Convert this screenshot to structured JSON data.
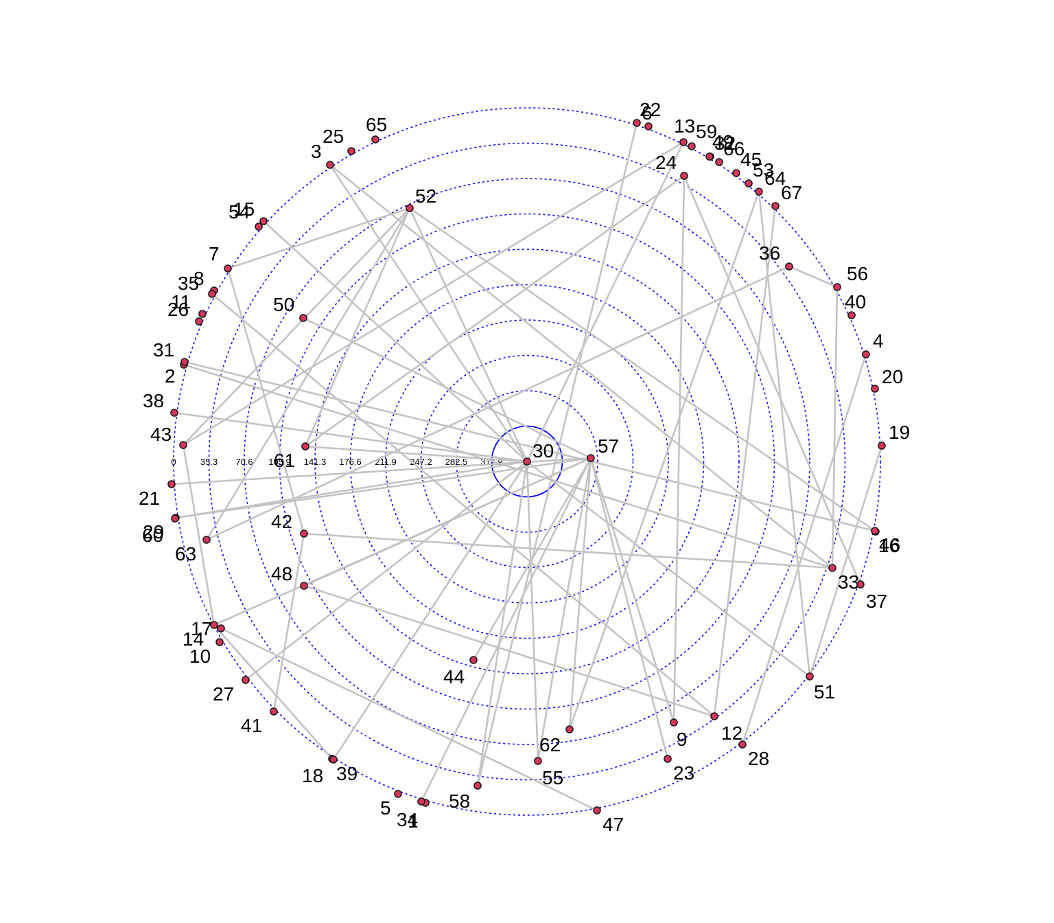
{
  "ring_labels": [
    "0",
    "35.3",
    "70.6",
    "105.9",
    "141.3",
    "176.6",
    "211.9",
    "247.2",
    "282.5",
    "317.9"
  ],
  "center_node": "30",
  "nodes": [
    {
      "id": "1",
      "ring": 0
    },
    {
      "id": "2",
      "ring": 0
    },
    {
      "id": "3",
      "ring": 1
    },
    {
      "id": "4",
      "ring": 0
    },
    {
      "id": "5",
      "ring": 0
    },
    {
      "id": "6",
      "ring": 0
    },
    {
      "id": "7",
      "ring": 0
    },
    {
      "id": "8",
      "ring": 0
    },
    {
      "id": "9",
      "ring": 3
    },
    {
      "id": "10",
      "ring": 0
    },
    {
      "id": "11",
      "ring": 0
    },
    {
      "id": "12",
      "ring": 1
    },
    {
      "id": "13",
      "ring": 0
    },
    {
      "id": "14",
      "ring": 0
    },
    {
      "id": "15",
      "ring": 0
    },
    {
      "id": "16",
      "ring": 0
    },
    {
      "id": "17",
      "ring": 0
    },
    {
      "id": "18",
      "ring": 1
    },
    {
      "id": "19",
      "ring": 0
    },
    {
      "id": "20",
      "ring": 0
    },
    {
      "id": "21",
      "ring": 0
    },
    {
      "id": "22",
      "ring": 0
    },
    {
      "id": "23",
      "ring": 2
    },
    {
      "id": "24",
      "ring": 1
    },
    {
      "id": "25",
      "ring": 0
    },
    {
      "id": "26",
      "ring": 0
    },
    {
      "id": "27",
      "ring": 0
    },
    {
      "id": "28",
      "ring": 0
    },
    {
      "id": "29",
      "ring": 0
    },
    {
      "id": "30",
      "ring": 9
    },
    {
      "id": "31",
      "ring": 0
    },
    {
      "id": "32",
      "ring": 0
    },
    {
      "id": "33",
      "ring": 1
    },
    {
      "id": "34",
      "ring": 0
    },
    {
      "id": "35",
      "ring": 0
    },
    {
      "id": "36",
      "ring": 1
    },
    {
      "id": "37",
      "ring": 0
    },
    {
      "id": "38",
      "ring": 0
    },
    {
      "id": "39",
      "ring": 1
    },
    {
      "id": "40",
      "ring": 0
    },
    {
      "id": "41",
      "ring": 0
    },
    {
      "id": "42",
      "ring": 3
    },
    {
      "id": "43",
      "ring": 1
    },
    {
      "id": "44",
      "ring": 4
    },
    {
      "id": "45",
      "ring": 0
    },
    {
      "id": "46",
      "ring": 0
    },
    {
      "id": "47",
      "ring": 0
    },
    {
      "id": "48",
      "ring": 3
    },
    {
      "id": "49",
      "ring": 0
    },
    {
      "id": "50",
      "ring": 3
    },
    {
      "id": "51",
      "ring": 0
    },
    {
      "id": "52",
      "ring": 2
    },
    {
      "id": "53",
      "ring": 0
    },
    {
      "id": "54",
      "ring": 0
    },
    {
      "id": "55",
      "ring": 2
    },
    {
      "id": "56",
      "ring": 0
    },
    {
      "id": "57",
      "ring": 9
    },
    {
      "id": "58",
      "ring": 1
    },
    {
      "id": "59",
      "ring": 0
    },
    {
      "id": "60",
      "ring": 0
    },
    {
      "id": "61",
      "ring": 3
    },
    {
      "id": "62",
      "ring": 2
    },
    {
      "id": "63",
      "ring": 1
    },
    {
      "id": "64",
      "ring": 0
    },
    {
      "id": "65",
      "ring": 0
    },
    {
      "id": "66",
      "ring": 0
    },
    {
      "id": "67",
      "ring": 0
    }
  ],
  "edges": [
    [
      "3",
      "30"
    ],
    [
      "3",
      "33"
    ],
    [
      "15",
      "30"
    ],
    [
      "52",
      "30"
    ],
    [
      "52",
      "43"
    ],
    [
      "52",
      "61"
    ],
    [
      "52",
      "46"
    ],
    [
      "24",
      "61"
    ],
    [
      "24",
      "9"
    ],
    [
      "24",
      "37"
    ],
    [
      "36",
      "56"
    ],
    [
      "36",
      "63"
    ],
    [
      "56",
      "33"
    ],
    [
      "67",
      "12"
    ],
    [
      "64",
      "62"
    ],
    [
      "64",
      "51"
    ],
    [
      "13",
      "30"
    ],
    [
      "13",
      "43"
    ],
    [
      "22",
      "58"
    ],
    [
      "7",
      "42"
    ],
    [
      "7",
      "52"
    ],
    [
      "35",
      "12"
    ],
    [
      "2",
      "33"
    ],
    [
      "31",
      "46"
    ],
    [
      "38",
      "30"
    ],
    [
      "50",
      "57"
    ],
    [
      "61",
      "30"
    ],
    [
      "43",
      "14"
    ],
    [
      "21",
      "57"
    ],
    [
      "29",
      "30"
    ],
    [
      "29",
      "57"
    ],
    [
      "42",
      "33"
    ],
    [
      "42",
      "41"
    ],
    [
      "48",
      "57"
    ],
    [
      "48",
      "12"
    ],
    [
      "63",
      "52"
    ],
    [
      "14",
      "57"
    ],
    [
      "14",
      "18"
    ],
    [
      "17",
      "47"
    ],
    [
      "27",
      "30"
    ],
    [
      "39",
      "30"
    ],
    [
      "44",
      "57"
    ],
    [
      "62",
      "57"
    ],
    [
      "55",
      "30"
    ],
    [
      "55",
      "57"
    ],
    [
      "9",
      "57"
    ],
    [
      "23",
      "57"
    ],
    [
      "58",
      "30"
    ],
    [
      "34",
      "57"
    ],
    [
      "28",
      "4"
    ],
    [
      "51",
      "30"
    ],
    [
      "19",
      "51"
    ]
  ]
}
